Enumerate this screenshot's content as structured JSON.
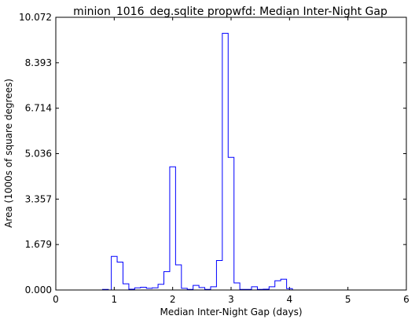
{
  "chart_data": {
    "type": "line",
    "title": "minion_1016_deg.sqlite propwfd: Median Inter-Night Gap",
    "xlabel": "Median Inter-Night Gap (days)",
    "ylabel": "Area (1000s of square degrees)",
    "xlim": [
      0,
      6
    ],
    "ylim": [
      0,
      10.072
    ],
    "x_ticks": [
      "0",
      "1",
      "2",
      "3",
      "4",
      "5",
      "6"
    ],
    "y_ticks": [
      "0.000",
      "1.679",
      "3.357",
      "5.036",
      "6.714",
      "8.393",
      "10.072"
    ],
    "grid": false,
    "series": [
      {
        "style": "step",
        "color": "#0000ff",
        "bin_edges": [
          0.0,
          0.1,
          0.2,
          0.3,
          0.4,
          0.5,
          0.6,
          0.7,
          0.8,
          0.9,
          0.95,
          1.05,
          1.15,
          1.25,
          1.35,
          1.45,
          1.55,
          1.65,
          1.75,
          1.85,
          1.95,
          2.05,
          2.15,
          2.25,
          2.35,
          2.45,
          2.55,
          2.65,
          2.75,
          2.85,
          2.95,
          3.05,
          3.15,
          3.25,
          3.35,
          3.45,
          3.55,
          3.65,
          3.75,
          3.85,
          3.95,
          4.05,
          4.15,
          4.25,
          4.35,
          4.45,
          4.55,
          4.65,
          4.75,
          4.85,
          4.95,
          5.05,
          5.15,
          5.25,
          5.35,
          5.45,
          5.55,
          5.65,
          5.75,
          5.85,
          5.95,
          6.0
        ],
        "values": [
          0.0,
          0.0,
          0.0,
          0.0,
          0.0,
          0.0,
          0.0,
          0.0,
          0.02,
          0.0,
          1.24,
          1.03,
          0.23,
          0.03,
          0.08,
          0.1,
          0.06,
          0.08,
          0.21,
          0.68,
          4.55,
          0.93,
          0.06,
          0.02,
          0.17,
          0.09,
          0.02,
          0.12,
          1.09,
          9.48,
          4.9,
          0.26,
          0.02,
          0.02,
          0.12,
          0.02,
          0.03,
          0.12,
          0.34,
          0.4,
          0.05,
          0.0,
          0.0,
          0.0,
          0.0,
          0.0,
          0.0,
          0.0,
          0.0,
          0.0,
          0.0,
          0.0,
          0.0,
          0.0,
          0.0,
          0.0,
          0.0,
          0.0,
          0.0,
          0.0,
          0.0
        ]
      }
    ]
  }
}
